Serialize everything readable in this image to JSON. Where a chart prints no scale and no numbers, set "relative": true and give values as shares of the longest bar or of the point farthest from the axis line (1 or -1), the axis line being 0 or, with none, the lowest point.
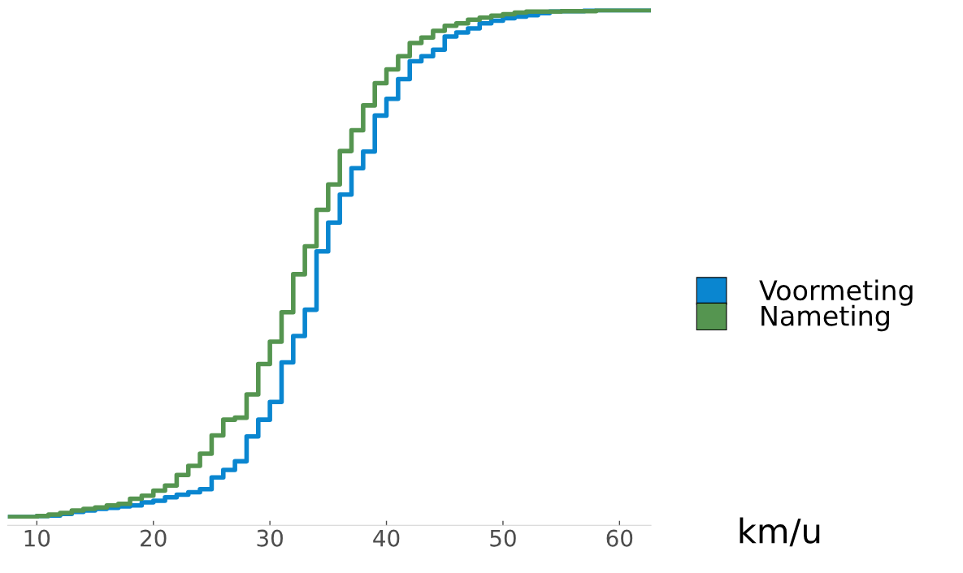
{
  "chart_data": {
    "type": "step",
    "relative": true,
    "xlabel": "km/u",
    "xlim": [
      7.5,
      62.7
    ],
    "xticks": [
      10,
      20,
      30,
      40,
      50,
      60
    ],
    "grid": false,
    "legend": "right",
    "tick_labels": "x",
    "series": [
      {
        "name": "Voormeting",
        "color": "#0a86d0",
        "x": [
          7.5,
          10,
          11,
          12,
          13,
          14,
          15,
          16,
          17,
          18,
          19,
          20,
          21,
          22,
          23,
          24,
          25,
          26,
          27,
          28,
          29,
          30,
          31,
          32,
          33,
          34,
          35,
          36,
          37,
          38,
          39,
          40,
          41,
          42,
          43,
          44,
          45,
          46,
          47,
          48,
          49,
          50,
          51,
          52,
          53,
          54,
          55,
          57,
          62.7
        ],
        "values": [
          0,
          0.002,
          0.003,
          0.006,
          0.01,
          0.013,
          0.016,
          0.018,
          0.021,
          0.023,
          0.029,
          0.032,
          0.039,
          0.044,
          0.049,
          0.055,
          0.078,
          0.093,
          0.11,
          0.159,
          0.192,
          0.227,
          0.305,
          0.357,
          0.409,
          0.524,
          0.581,
          0.636,
          0.688,
          0.721,
          0.792,
          0.825,
          0.864,
          0.899,
          0.909,
          0.922,
          0.948,
          0.956,
          0.964,
          0.974,
          0.979,
          0.984,
          0.987,
          0.99,
          0.994,
          0.997,
          0.998,
          1,
          1
        ]
      },
      {
        "name": "Nameting",
        "color": "#559550",
        "x": [
          7.5,
          10,
          11,
          12,
          13,
          14,
          15,
          16,
          17,
          18,
          19,
          20,
          21,
          22,
          23,
          24,
          25,
          26,
          27,
          28,
          29,
          30,
          31,
          32,
          33,
          34,
          35,
          36,
          37,
          38,
          39,
          40,
          41,
          42,
          43,
          44,
          45,
          46,
          47,
          48,
          49,
          50,
          51,
          52,
          55,
          58,
          62.7
        ],
        "values": [
          0,
          0.002,
          0.005,
          0.008,
          0.013,
          0.016,
          0.019,
          0.023,
          0.026,
          0.036,
          0.042,
          0.052,
          0.062,
          0.083,
          0.101,
          0.125,
          0.161,
          0.192,
          0.196,
          0.242,
          0.302,
          0.346,
          0.404,
          0.479,
          0.534,
          0.606,
          0.656,
          0.722,
          0.763,
          0.812,
          0.856,
          0.883,
          0.909,
          0.935,
          0.946,
          0.959,
          0.969,
          0.974,
          0.981,
          0.985,
          0.989,
          0.992,
          0.995,
          0.997,
          0.998,
          1,
          1
        ]
      }
    ]
  }
}
